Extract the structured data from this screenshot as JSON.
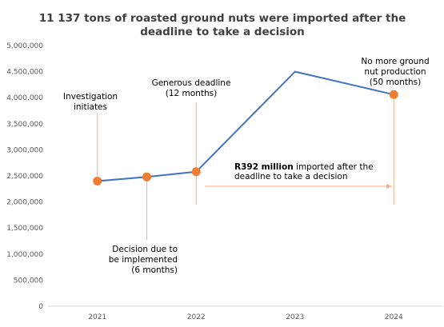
{
  "chart_data": {
    "type": "line",
    "title_lines": [
      "11 137 tons of roasted ground nuts were imported after the",
      "deadline to take a decision"
    ],
    "xlabel": "",
    "ylabel": "",
    "x_ticks": [
      "2021",
      "2022",
      "2023",
      "2024"
    ],
    "y_ticks": [
      "0",
      "500,000",
      "1,000,000",
      "1,500,000",
      "2,000,000",
      "2,500,000",
      "3,000,000",
      "3,500,000",
      "4,000,000",
      "4,500,000",
      "5,000,000"
    ],
    "ylim": [
      0,
      5000000
    ],
    "grid": false,
    "legend": "none",
    "series": [
      {
        "x": [
          2021,
          2021.5,
          2022,
          2023,
          2024
        ],
        "values": [
          2400000,
          2480000,
          2580000,
          4500000,
          4060000
        ]
      }
    ],
    "marked_points": [
      0,
      1,
      2,
      4
    ],
    "colors": {
      "line": "#4472c4",
      "marker": "#ed7d31",
      "annotation_line": "#f4b183",
      "axis": "#d9d9d9",
      "title": "#404040"
    },
    "annotations": {
      "investigation": [
        "Investigation",
        "initiates"
      ],
      "decision_due": [
        "Decision due to",
        "be implemented",
        "(6 months)"
      ],
      "generous_deadline": [
        "Generous deadline",
        "(12 months)"
      ],
      "no_more": [
        "No more ground",
        "nut production",
        "(50 months)"
      ],
      "imported_bold": "R392 million",
      "imported_rest": " imported after the",
      "imported_line2": "deadline to take a decision"
    }
  }
}
